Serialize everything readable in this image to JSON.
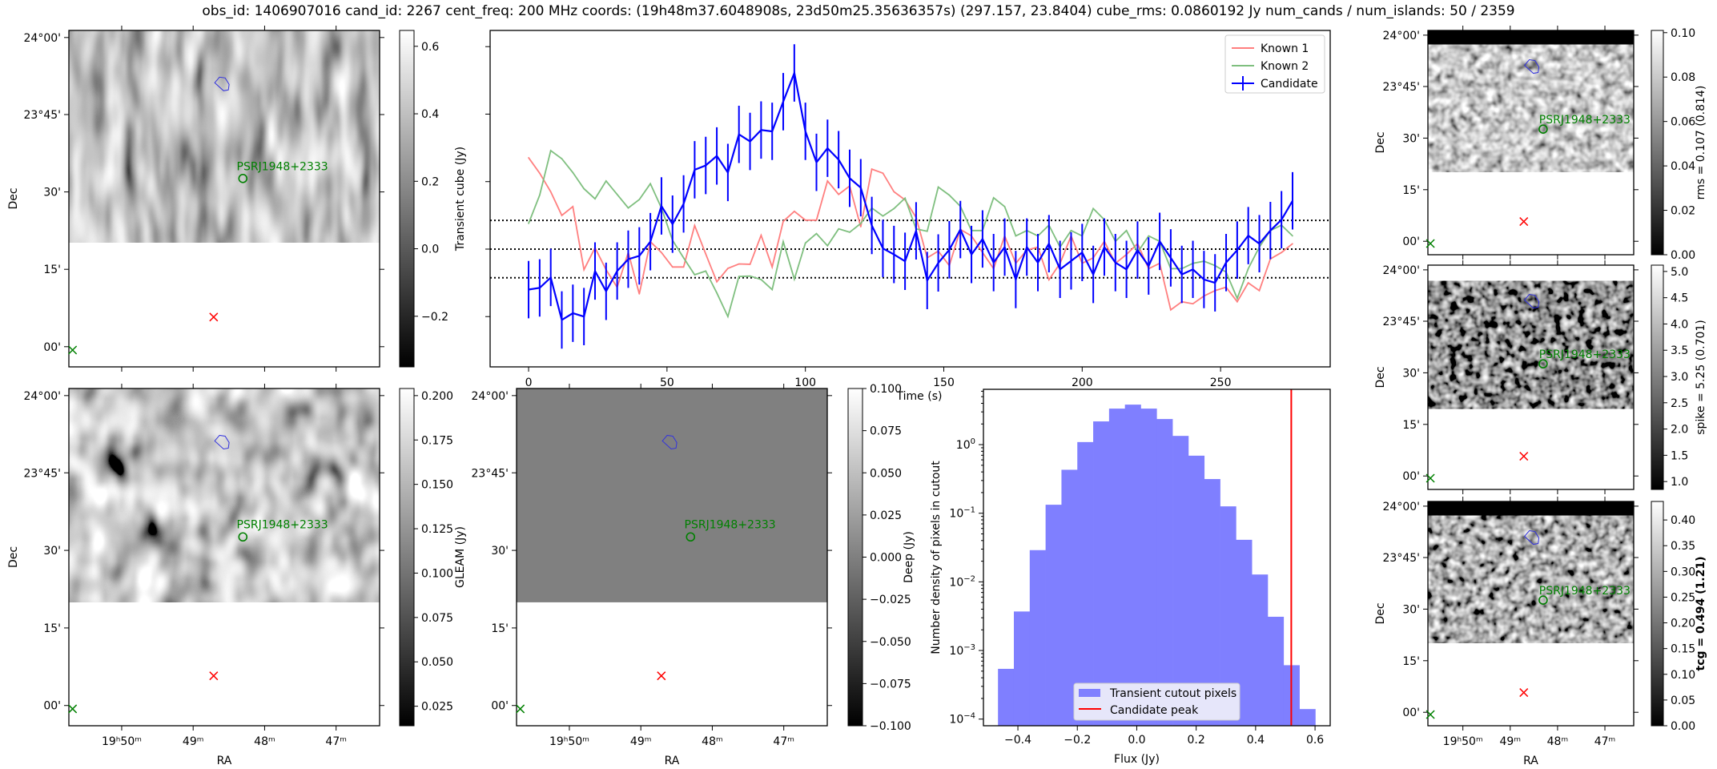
{
  "title": "obs_id: 1406907016 cand_id: 2267 cent_freq: 200 MHz coords: (19h48m37.6048908s, 23d50m25.35636357s) (297.157, 23.8404) cube_rms: 0.0860192 Jy num_cands / num_islands: 50 / 2359",
  "sky": {
    "dec_ticks": [
      "24°00'",
      "23°45'",
      "30'",
      "15'",
      "00'"
    ],
    "ra_ticks": [
      "19ʰ50ᵐ",
      "49ᵐ",
      "48ᵐ",
      "47ᵐ"
    ],
    "xlabel": "RA",
    "ylabel": "Dec",
    "source_label": "PSRJ1948+2333"
  },
  "panels": {
    "transient": {
      "colorbar_label": "Transient cube (Jy)",
      "range": [
        -0.35,
        0.647
      ],
      "ticks": [
        -0.2,
        0,
        0.2,
        0.4,
        0.6
      ],
      "tick_labels": [
        "−0.2",
        "0.0",
        "0.2",
        "0.4",
        "0.6"
      ]
    },
    "gleam": {
      "colorbar_label": "GLEAM (Jy)",
      "range": [
        0.014,
        0.204
      ],
      "ticks": [
        0.025,
        0.05,
        0.075,
        0.1,
        0.125,
        0.15,
        0.175,
        0.2
      ],
      "tick_labels": [
        "0.025",
        "0.050",
        "0.075",
        "0.100",
        "0.125",
        "0.150",
        "0.175",
        "0.200"
      ]
    },
    "deep": {
      "colorbar_label": "Deep (Jy)",
      "range": [
        -0.1,
        0.1
      ],
      "ticks": [
        -0.1,
        -0.075,
        -0.05,
        -0.025,
        0,
        0.025,
        0.05,
        0.075,
        0.1
      ],
      "tick_labels": [
        "−0.100",
        "−0.075",
        "−0.050",
        "−0.025",
        "0.000",
        "0.025",
        "0.050",
        "0.075",
        "0.100"
      ]
    },
    "rms": {
      "colorbar_label": "rms = 0.107 (0.814)",
      "range": [
        0,
        0.101
      ],
      "ticks": [
        0,
        0.02,
        0.04,
        0.06,
        0.08,
        0.1
      ],
      "tick_labels": [
        "0.00",
        "0.02",
        "0.04",
        "0.06",
        "0.08",
        "0.10"
      ]
    },
    "spike": {
      "colorbar_label": "spike = 5.25 (0.701)",
      "range": [
        0.85,
        5.12
      ],
      "ticks": [
        1,
        1.5,
        2,
        2.5,
        3,
        3.5,
        4,
        4.5,
        5
      ],
      "tick_labels": [
        "1.0",
        "1.5",
        "2.0",
        "2.5",
        "3.0",
        "3.5",
        "4.0",
        "4.5",
        "5.0"
      ]
    },
    "tcg": {
      "colorbar_label": "tcg = 0.494 (1.21)",
      "range": [
        0,
        0.436
      ],
      "ticks": [
        0,
        0.05,
        0.1,
        0.15,
        0.2,
        0.25,
        0.3,
        0.35,
        0.4
      ],
      "tick_labels": [
        "0.00",
        "0.05",
        "0.10",
        "0.15",
        "0.20",
        "0.25",
        "0.30",
        "0.35",
        "0.40"
      ]
    }
  },
  "chart_data": [
    {
      "type": "line",
      "title": "",
      "xlabel": "Time (s)",
      "ylabel": "",
      "xlim": [
        -13.9,
        289.6
      ],
      "ylim": [
        -0.349,
        0.648
      ],
      "xticks": [
        0,
        50,
        100,
        150,
        200,
        250
      ],
      "xtick_labels": [
        "0",
        "50",
        "100",
        "150",
        "200",
        "250"
      ],
      "t_start": 0,
      "t_step": 4,
      "threshold_lines": [
        -0.085,
        0,
        0.085
      ],
      "legend": {
        "placement": "top-right",
        "entries": [
          "Known 1",
          "Known 2",
          "Candidate"
        ]
      },
      "series": [
        {
          "name": "Known 1",
          "color": "#ff7f7f",
          "values": [
            0.271,
            0.225,
            0.17,
            0.1,
            0.126,
            -0.061,
            0.004,
            -0.061,
            -0.113,
            -0.01,
            -0.133,
            0.022,
            -0.01,
            -0.053,
            -0.053,
            0.07,
            -0.014,
            -0.097,
            -0.057,
            -0.044,
            -0.045,
            0.041,
            -0.053,
            0.082,
            0.112,
            0.086,
            0.086,
            0.202,
            0.162,
            0.187,
            0.066,
            0.237,
            0.225,
            0.17,
            0.146,
            0.094,
            -0.026,
            -0.006,
            -0.049,
            0.058,
            0.039,
            -0.01,
            -0.058,
            0.039,
            -0.042,
            -0.003,
            0.006,
            -0.091,
            -0.042,
            0.039,
            -0.042,
            -0.026,
            0.023,
            -0.042,
            -0.016,
            0.016,
            -0.058,
            -0.042,
            -0.18,
            -0.156,
            -0.162,
            -0.139,
            -0.123,
            -0.113,
            -0.156,
            -0.1,
            -0.123,
            -0.029,
            -0.01,
            0.016
          ]
        },
        {
          "name": "Known 2",
          "color": "#7fbf7f",
          "values": [
            0.076,
            0.16,
            0.292,
            0.268,
            0.227,
            0.179,
            0.149,
            0.202,
            0.162,
            0.122,
            0.147,
            0.194,
            0.122,
            0.026,
            -0.026,
            -0.076,
            -0.065,
            -0.13,
            -0.2,
            -0.081,
            -0.08,
            -0.09,
            -0.12,
            0.022,
            -0.089,
            0.018,
            0.046,
            0.01,
            0.06,
            0.05,
            0.076,
            0.122,
            0.098,
            0.12,
            0.151,
            0.06,
            0.053,
            0.184,
            0.16,
            0.127,
            0.055,
            0.055,
            0.152,
            0.126,
            0.039,
            0.055,
            0.039,
            0.071,
            0.006,
            0.055,
            0.039,
            0.12,
            0.087,
            0.023,
            0.055,
            -0.01,
            0.039,
            0.023,
            -0.058,
            -0.058,
            -0.042,
            -0.036,
            -0.049,
            -0.068,
            -0.146,
            -0.058,
            0.006,
            0.055,
            0.071,
            0.039
          ]
        },
        {
          "name": "Candidate",
          "color": "#0000ff",
          "error": 0.085,
          "values": [
            -0.12,
            -0.115,
            -0.084,
            -0.21,
            -0.19,
            -0.2,
            -0.065,
            -0.125,
            -0.065,
            -0.03,
            -0.02,
            0.022,
            0.128,
            0.074,
            0.134,
            0.235,
            0.248,
            0.276,
            0.227,
            0.34,
            0.319,
            0.353,
            0.349,
            0.437,
            0.522,
            0.349,
            0.257,
            0.299,
            0.265,
            0.21,
            0.182,
            0.07,
            0.002,
            -0.016,
            -0.036,
            0.054,
            -0.093,
            -0.041,
            -0.002,
            0.058,
            -0.016,
            0.03,
            -0.04,
            0.006,
            -0.09,
            0.006,
            -0.04,
            0.016,
            -0.06,
            -0.035,
            -0.01,
            -0.075,
            0.006,
            -0.04,
            -0.06,
            -0.003,
            -0.05,
            0.023,
            -0.026,
            -0.075,
            -0.06,
            -0.09,
            -0.1,
            -0.04,
            -0.003,
            0.04,
            0.016,
            0.055,
            0.087,
            0.143
          ]
        }
      ]
    },
    {
      "type": "bar",
      "title": "",
      "xlabel": "Flux (Jy)",
      "ylabel": "Number density of pixels in cutout",
      "yscale": "log",
      "xlim": [
        -0.516,
        0.651
      ],
      "ylim": [
        8e-05,
        6.4
      ],
      "xticks": [
        -0.4,
        -0.2,
        0,
        0.2,
        0.4,
        0.6
      ],
      "xtick_labels": [
        "−0.4",
        "−0.2",
        "0.0",
        "0.2",
        "0.4",
        "0.6"
      ],
      "yticks": [
        0.0001,
        0.001,
        0.01,
        0.1,
        1
      ],
      "ytick_exponents": [
        "−4",
        "−3",
        "−2",
        "−1",
        "0"
      ],
      "ytick_base": "10",
      "bin_start": -0.467,
      "bin_width": 0.0534,
      "values": [
        0.00054,
        0.0037,
        0.029,
        0.133,
        0.43,
        1.09,
        2.18,
        3.35,
        3.83,
        3.35,
        2.36,
        1.34,
        0.69,
        0.315,
        0.126,
        0.041,
        0.0128,
        0.0031,
        0.00061,
        0.00014
      ],
      "bar_color": "#7f7fff",
      "candidate_peak": 0.52,
      "peak_color": "#ff0000",
      "legend": {
        "placement": "lower-center",
        "entries": [
          "Transient cutout pixels",
          "Candidate peak"
        ]
      }
    }
  ]
}
